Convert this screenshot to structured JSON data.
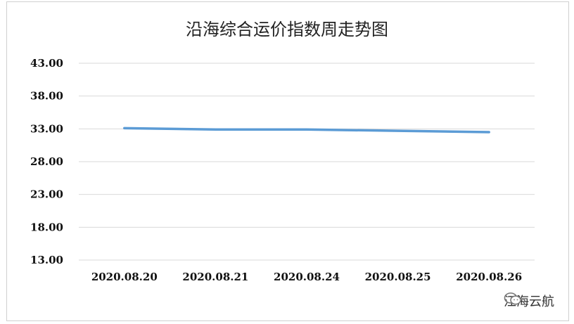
{
  "chart_data": {
    "type": "line",
    "title": "沿海综合运价指数周走势图",
    "categories": [
      "2020.08.20",
      "2020.08.21",
      "2020.08.24",
      "2020.08.25",
      "2020.08.26"
    ],
    "series": [
      {
        "values": [
          33.1,
          32.9,
          32.9,
          32.7,
          32.5
        ]
      }
    ],
    "y_ticks": [
      "13.00",
      "18.00",
      "23.00",
      "28.00",
      "33.00",
      "38.00",
      "43.00"
    ],
    "ylim": [
      13,
      43
    ],
    "grid": true,
    "legend": "none",
    "colors": {
      "series": "#5b9bd5",
      "grid": "#d9d9d9"
    }
  },
  "watermark": {
    "text": "江海云航",
    "icon": "wechat-icon"
  }
}
